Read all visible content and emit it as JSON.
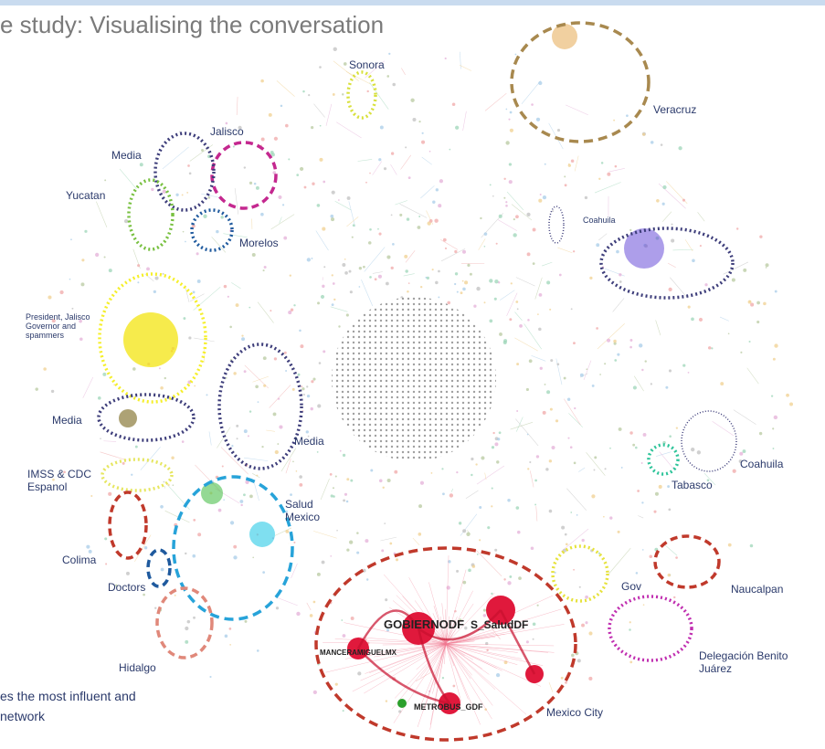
{
  "header": {
    "title": "e study: Visualising the conversation"
  },
  "footer": {
    "lines": [
      "es the most influent and",
      "network"
    ]
  },
  "clusters": [
    {
      "label": "Sonora"
    },
    {
      "label": "Veracruz"
    },
    {
      "label": "Jalisco"
    },
    {
      "label": "Media"
    },
    {
      "label": "Yucatan"
    },
    {
      "label": "Morelos"
    },
    {
      "label": "Coahuila"
    },
    {
      "label": "President, Jalisco Governor and spammers"
    },
    {
      "label": "Media"
    },
    {
      "label": "Media"
    },
    {
      "label": "IMSS & CDC Espanol"
    },
    {
      "label": "Coahuila"
    },
    {
      "label": "Tabasco"
    },
    {
      "label": "Salud Mexico"
    },
    {
      "label": "Colima"
    },
    {
      "label": "Doctors"
    },
    {
      "label": "Gov"
    },
    {
      "label": "Naucalpan"
    },
    {
      "label": "Hidalgo"
    },
    {
      "label": "Delegación Benito Juárez"
    },
    {
      "label": "Mexico City"
    }
  ],
  "nodes": [
    {
      "label": "GOBIERNODF"
    },
    {
      "label": "S_SaludDF"
    },
    {
      "label": "MANCERAMIGUELMX"
    },
    {
      "label": "METROBUS_GDF"
    }
  ]
}
